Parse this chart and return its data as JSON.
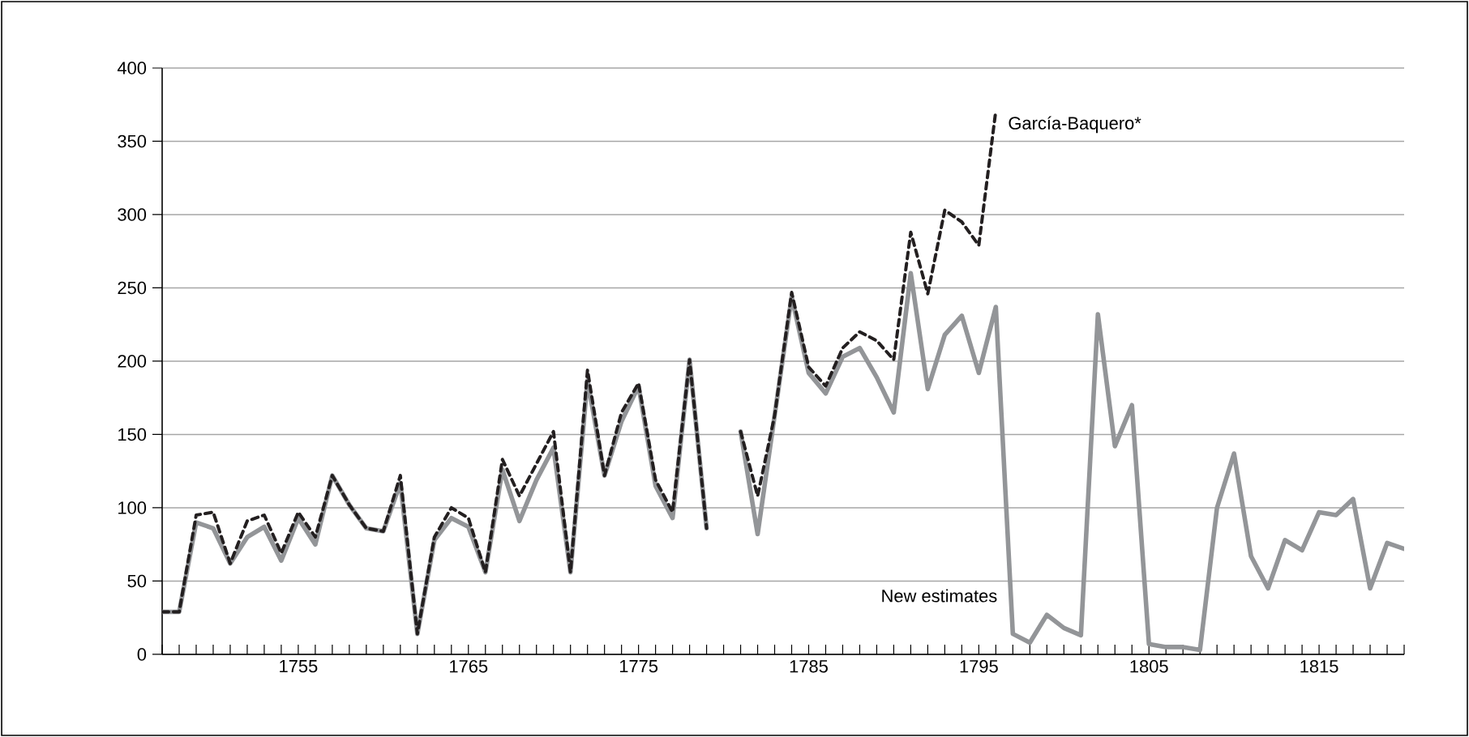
{
  "chart_data": {
    "type": "line",
    "x": [
      1747,
      1748,
      1749,
      1750,
      1751,
      1752,
      1753,
      1754,
      1755,
      1756,
      1757,
      1758,
      1759,
      1760,
      1761,
      1762,
      1763,
      1764,
      1765,
      1766,
      1767,
      1768,
      1769,
      1770,
      1771,
      1772,
      1773,
      1774,
      1775,
      1776,
      1777,
      1778,
      1779,
      1780,
      1781,
      1782,
      1783,
      1784,
      1785,
      1786,
      1787,
      1788,
      1789,
      1790,
      1791,
      1792,
      1793,
      1794,
      1795,
      1796,
      1797,
      1798,
      1799,
      1800,
      1801,
      1802,
      1803,
      1804,
      1805,
      1806,
      1807,
      1808,
      1809,
      1810,
      1811,
      1812,
      1813,
      1814,
      1815,
      1816,
      1817,
      1818,
      1819,
      1820
    ],
    "series": [
      {
        "name": "New estimates",
        "color": "#939598",
        "line_style": "solid",
        "values": [
          29,
          29,
          90,
          86,
          62,
          80,
          87,
          64,
          93,
          75,
          122,
          102,
          86,
          84,
          117,
          14,
          78,
          93,
          87,
          56,
          126,
          91,
          119,
          141,
          56,
          187,
          122,
          159,
          183,
          115,
          93,
          201,
          86,
          null,
          152,
          82,
          163,
          244,
          192,
          178,
          203,
          209,
          189,
          165,
          260,
          181,
          218,
          231,
          192,
          237,
          14,
          8,
          27,
          18,
          13,
          232,
          142,
          170,
          7,
          5,
          5,
          3,
          100,
          137,
          67,
          45,
          78,
          71,
          97,
          95,
          106,
          45,
          76,
          72
        ]
      },
      {
        "name": "García-Baquero*",
        "color": "#231f20",
        "line_style": "dashed",
        "values": [
          29,
          29,
          95,
          97,
          62,
          91,
          95,
          69,
          97,
          80,
          122,
          102,
          86,
          84,
          122,
          14,
          80,
          100,
          93,
          56,
          133,
          108,
          130,
          152,
          56,
          194,
          122,
          165,
          185,
          119,
          97,
          201,
          86,
          null,
          152,
          108,
          163,
          247,
          196,
          183,
          209,
          220,
          214,
          201,
          288,
          246,
          303,
          295,
          279,
          371,
          null,
          null,
          null,
          null,
          null,
          null,
          null,
          null,
          null,
          null,
          null,
          null,
          null,
          null,
          null,
          null,
          null,
          null,
          null,
          null,
          null,
          null,
          null,
          null
        ]
      }
    ],
    "xlim": [
      1747,
      1820
    ],
    "xticks": [
      {
        "value": 1747,
        "label": null
      },
      {
        "value": 1748,
        "label": null
      },
      {
        "value": 1749,
        "label": null
      },
      {
        "value": 1750,
        "label": null
      },
      {
        "value": 1751,
        "label": null
      },
      {
        "value": 1752,
        "label": null
      },
      {
        "value": 1753,
        "label": null
      },
      {
        "value": 1754,
        "label": null
      },
      1755,
      {
        "value": 1756,
        "label": null
      },
      {
        "value": 1757,
        "label": null
      },
      {
        "value": 1758,
        "label": null
      },
      {
        "value": 1759,
        "label": null
      },
      {
        "value": 1760,
        "label": null
      },
      {
        "value": 1761,
        "label": null
      },
      {
        "value": 1762,
        "label": null
      },
      {
        "value": 1763,
        "label": null
      },
      {
        "value": 1764,
        "label": null
      },
      1765,
      {
        "value": 1766,
        "label": null
      },
      {
        "value": 1767,
        "label": null
      },
      {
        "value": 1768,
        "label": null
      },
      {
        "value": 1769,
        "label": null
      },
      {
        "value": 1770,
        "label": null
      },
      {
        "value": 1771,
        "label": null
      },
      {
        "value": 1772,
        "label": null
      },
      {
        "value": 1773,
        "label": null
      },
      {
        "value": 1774,
        "label": null
      },
      1775,
      {
        "value": 1776,
        "label": null
      },
      {
        "value": 1777,
        "label": null
      },
      {
        "value": 1778,
        "label": null
      },
      {
        "value": 1779,
        "label": null
      },
      {
        "value": 1780,
        "label": null
      },
      {
        "value": 1781,
        "label": null
      },
      {
        "value": 1782,
        "label": null
      },
      {
        "value": 1783,
        "label": null
      },
      {
        "value": 1784,
        "label": null
      },
      1785,
      {
        "value": 1786,
        "label": null
      },
      {
        "value": 1787,
        "label": null
      },
      {
        "value": 1788,
        "label": null
      },
      {
        "value": 1789,
        "label": null
      },
      {
        "value": 1790,
        "label": null
      },
      {
        "value": 1791,
        "label": null
      },
      {
        "value": 1792,
        "label": null
      },
      {
        "value": 1793,
        "label": null
      },
      {
        "value": 1794,
        "label": null
      },
      1795,
      {
        "value": 1796,
        "label": null
      },
      {
        "value": 1797,
        "label": null
      },
      {
        "value": 1798,
        "label": null
      },
      {
        "value": 1799,
        "label": null
      },
      {
        "value": 1800,
        "label": null
      },
      {
        "value": 1801,
        "label": null
      },
      {
        "value": 1802,
        "label": null
      },
      {
        "value": 1803,
        "label": null
      },
      {
        "value": 1804,
        "label": null
      },
      1805,
      {
        "value": 1806,
        "label": null
      },
      {
        "value": 1807,
        "label": null
      },
      {
        "value": 1808,
        "label": null
      },
      {
        "value": 1809,
        "label": null
      },
      {
        "value": 1810,
        "label": null
      },
      {
        "value": 1811,
        "label": null
      },
      {
        "value": 1812,
        "label": null
      },
      {
        "value": 1813,
        "label": null
      },
      {
        "value": 1814,
        "label": null
      },
      1815,
      {
        "value": 1816,
        "label": null
      },
      {
        "value": 1817,
        "label": null
      },
      {
        "value": 1818,
        "label": null
      },
      {
        "value": 1819,
        "label": null
      },
      {
        "value": 1820,
        "label": null
      }
    ],
    "ylim": [
      0,
      400
    ],
    "yticks": [
      0,
      50,
      100,
      150,
      200,
      250,
      300,
      350,
      400
    ],
    "grid": "y",
    "marker": "none"
  }
}
